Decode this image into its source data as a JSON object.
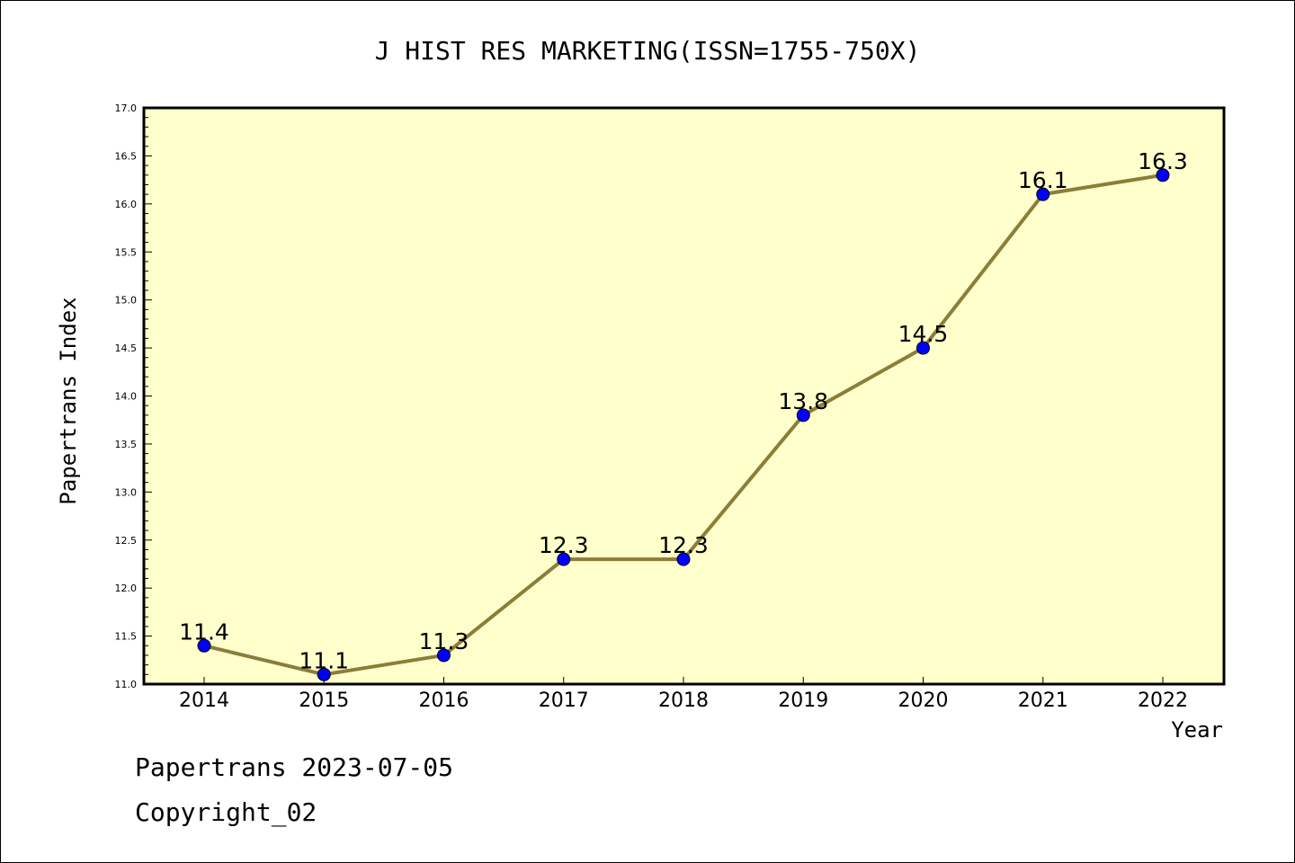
{
  "chart_data": {
    "type": "line",
    "title": "J HIST RES MARKETING(ISSN=1755-750X)",
    "xlabel": "Year",
    "ylabel": "Papertrans Index",
    "categories": [
      "2014",
      "2015",
      "2016",
      "2017",
      "2018",
      "2019",
      "2020",
      "2021",
      "2022"
    ],
    "series": [
      {
        "values": [
          11.4,
          11.1,
          11.3,
          12.3,
          12.3,
          13.8,
          14.5,
          16.1,
          16.3
        ]
      }
    ],
    "data_labels": [
      "11.4",
      "11.1",
      "11.3",
      "12.3",
      "12.3",
      "13.8",
      "14.5",
      "16.1",
      "16.3"
    ],
    "ylim": [
      11.0,
      17.0
    ],
    "yticks": [
      "11.0",
      "11.5",
      "12.0",
      "12.5",
      "13.0",
      "13.5",
      "14.0",
      "14.5",
      "15.0",
      "15.5",
      "16.0",
      "16.5",
      "17.0"
    ],
    "grid": false,
    "colors": {
      "plot_background": "#ffffcc",
      "line": "#8b7d3a",
      "marker": "#0000ff"
    }
  },
  "footer": {
    "line1": "Papertrans 2023-07-05",
    "line2": "Copyright_02"
  }
}
